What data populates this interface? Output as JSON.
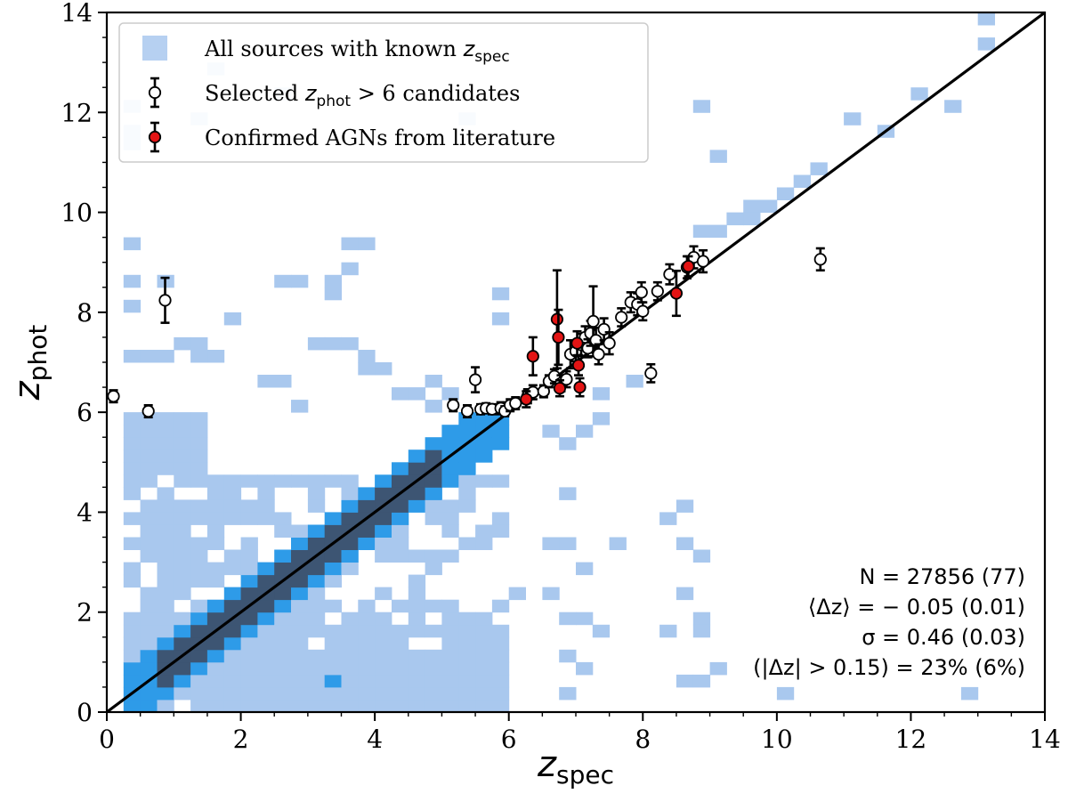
{
  "chart_data": {
    "type": "scatter",
    "xlabel": "z",
    "xlabel_sub": "spec",
    "ylabel": "z",
    "ylabel_sub": "phot",
    "xlim": [
      0,
      14
    ],
    "ylim": [
      0,
      14
    ],
    "xticks": [
      0,
      2,
      4,
      6,
      8,
      10,
      12,
      14
    ],
    "yticks": [
      0,
      2,
      4,
      6,
      8,
      10,
      12,
      14
    ],
    "grid": false,
    "legend_position": "top-left",
    "one_to_one_line": true,
    "colors": {
      "hist_low": "#a9c8ee",
      "hist_mid": "#2e9be8",
      "hist_high": "#3d5573",
      "candidate_fill": "#ffffff",
      "agn_fill": "#e31414",
      "line": "#000000"
    },
    "legend": [
      {
        "kind": "hist",
        "prefix": "All sources with known ",
        "var": "z",
        "sub": "spec",
        "suffix": ""
      },
      {
        "kind": "candidate",
        "prefix": "Selected ",
        "var": "z",
        "sub": "phot",
        "suffix": " > 6 candidates"
      },
      {
        "kind": "agn",
        "prefix": "Confirmed AGNs from literature",
        "var": "",
        "sub": "",
        "suffix": ""
      }
    ],
    "stats": [
      "N = 27856 (77)",
      "⟨Δz⟩ = − 0.05 (0.01)",
      "σ = 0.46 (0.03)",
      "(|Δz| > 0.15) = 23% (6%)"
    ],
    "series": [
      {
        "name": "Selected z_phot > 6 candidates",
        "marker": "open-circle",
        "points": [
          [
            0.1,
            6.32,
            0.12,
            0.12
          ],
          [
            0.62,
            6.02,
            0.12,
            0.12
          ],
          [
            0.87,
            8.24,
            0.45,
            0.45
          ],
          [
            5.17,
            6.14,
            0.12,
            0.12
          ],
          [
            5.38,
            6.02,
            0.12,
            0.12
          ],
          [
            5.5,
            6.65,
            0.25,
            0.25
          ],
          [
            5.58,
            6.06,
            0.1,
            0.1
          ],
          [
            5.66,
            6.08,
            0.1,
            0.1
          ],
          [
            5.75,
            6.06,
            0.1,
            0.1
          ],
          [
            5.88,
            6.08,
            0.12,
            0.12
          ],
          [
            5.94,
            6.02,
            0.1,
            0.1
          ],
          [
            6.02,
            6.14,
            0.12,
            0.12
          ],
          [
            6.1,
            6.18,
            0.12,
            0.12
          ],
          [
            6.28,
            6.32,
            0.14,
            0.14
          ],
          [
            6.36,
            6.4,
            0.14,
            0.14
          ],
          [
            6.52,
            6.42,
            0.12,
            0.12
          ],
          [
            6.6,
            6.62,
            0.12,
            0.12
          ],
          [
            6.68,
            6.72,
            0.14,
            0.14
          ],
          [
            6.78,
            6.58,
            0.16,
            0.16
          ],
          [
            6.86,
            6.66,
            0.16,
            0.16
          ],
          [
            6.92,
            7.16,
            0.28,
            0.28
          ],
          [
            7.0,
            7.22,
            0.2,
            0.2
          ],
          [
            7.08,
            7.35,
            0.22,
            0.22
          ],
          [
            7.14,
            7.5,
            0.22,
            0.22
          ],
          [
            7.18,
            7.28,
            0.18,
            0.18
          ],
          [
            7.22,
            7.58,
            0.25,
            0.25
          ],
          [
            7.26,
            7.82,
            0.7,
            0.7
          ],
          [
            7.3,
            7.44,
            0.25,
            0.25
          ],
          [
            7.34,
            7.16,
            0.2,
            0.2
          ],
          [
            7.42,
            7.66,
            0.22,
            0.22
          ],
          [
            7.5,
            7.38,
            0.22,
            0.22
          ],
          [
            7.68,
            7.9,
            0.18,
            0.18
          ],
          [
            7.82,
            8.2,
            0.2,
            0.2
          ],
          [
            7.92,
            8.16,
            0.22,
            0.22
          ],
          [
            7.98,
            8.4,
            0.2,
            0.2
          ],
          [
            8.0,
            8.02,
            0.18,
            0.18
          ],
          [
            8.12,
            6.78,
            0.18,
            0.18
          ],
          [
            8.22,
            8.42,
            0.18,
            0.18
          ],
          [
            8.4,
            8.76,
            0.2,
            0.2
          ],
          [
            8.66,
            8.9,
            0.22,
            0.22
          ],
          [
            8.76,
            9.1,
            0.22,
            0.22
          ],
          [
            8.9,
            9.02,
            0.22,
            0.22
          ],
          [
            10.65,
            9.06,
            0.22,
            0.22
          ]
        ]
      },
      {
        "name": "Confirmed AGNs from literature",
        "marker": "filled-circle",
        "points": [
          [
            6.26,
            6.26,
            0.16,
            0.16
          ],
          [
            6.36,
            7.12,
            0.38,
            0.38
          ],
          [
            6.72,
            7.86,
            0.98,
            0.98
          ],
          [
            6.74,
            7.5,
            0.55,
            0.55
          ],
          [
            6.76,
            6.48,
            0.16,
            0.16
          ],
          [
            7.02,
            7.38,
            0.24,
            0.24
          ],
          [
            7.04,
            6.94,
            0.2,
            0.2
          ],
          [
            7.06,
            6.5,
            0.18,
            0.18
          ],
          [
            8.5,
            8.38,
            0.45,
            0.45
          ],
          [
            8.68,
            8.92,
            0.2,
            0.2
          ]
        ]
      }
    ],
    "histogram": {
      "bin_width": 0.25,
      "levels": [
        "low",
        "mid",
        "high"
      ],
      "cells": [
        [
          0.25,
          11.5,
          "low"
        ],
        [
          13.0,
          13.75,
          "low"
        ],
        [
          13.0,
          13.25,
          "low"
        ],
        [
          12.5,
          12.0,
          "low"
        ],
        [
          12.0,
          12.25,
          "low"
        ],
        [
          11.0,
          11.75,
          "low"
        ],
        [
          11.5,
          11.5,
          "low"
        ],
        [
          10.5,
          10.75,
          "low"
        ],
        [
          10.25,
          10.5,
          "low"
        ],
        [
          10.0,
          10.25,
          "low"
        ],
        [
          9.75,
          10.0,
          "low"
        ],
        [
          9.5,
          10.0,
          "low"
        ],
        [
          9.5,
          9.75,
          "low"
        ],
        [
          9.25,
          9.75,
          "low"
        ],
        [
          9.0,
          9.5,
          "low"
        ],
        [
          8.75,
          9.5,
          "low"
        ],
        [
          8.75,
          12.0,
          "low"
        ],
        [
          9.0,
          11.0,
          "low"
        ],
        [
          5.25,
          11.75,
          "low"
        ],
        [
          2.5,
          12.25,
          "low"
        ],
        [
          1.25,
          11.75,
          "low"
        ],
        [
          1.5,
          12.75,
          "low"
        ],
        [
          0.25,
          12.0,
          "low"
        ],
        [
          0.25,
          11.25,
          "low"
        ],
        [
          0.25,
          9.25,
          "low"
        ],
        [
          0.25,
          8.5,
          "low"
        ],
        [
          0.25,
          8.0,
          "low"
        ],
        [
          0.75,
          8.5,
          "low"
        ],
        [
          3.25,
          8.25,
          "low"
        ],
        [
          3.5,
          9.25,
          "low"
        ],
        [
          3.75,
          9.25,
          "low"
        ],
        [
          3.5,
          8.75,
          "low"
        ],
        [
          2.75,
          8.5,
          "low"
        ],
        [
          3.25,
          8.5,
          "low"
        ],
        [
          2.5,
          8.5,
          "low"
        ],
        [
          1.75,
          7.75,
          "low"
        ],
        [
          1.0,
          7.25,
          "low"
        ],
        [
          1.25,
          7.25,
          "low"
        ],
        [
          1.5,
          7.0,
          "low"
        ],
        [
          0.25,
          7.0,
          "low"
        ],
        [
          0.5,
          7.0,
          "low"
        ],
        [
          0.75,
          7.0,
          "low"
        ],
        [
          1.25,
          7.0,
          "low"
        ],
        [
          2.25,
          6.5,
          "low"
        ],
        [
          2.5,
          6.5,
          "low"
        ],
        [
          2.75,
          6.0,
          "low"
        ],
        [
          3.0,
          7.25,
          "low"
        ],
        [
          3.25,
          7.25,
          "low"
        ],
        [
          3.5,
          7.25,
          "low"
        ],
        [
          3.75,
          7.0,
          "low"
        ],
        [
          3.75,
          6.75,
          "low"
        ],
        [
          4.0,
          6.75,
          "low"
        ],
        [
          4.25,
          6.25,
          "low"
        ],
        [
          4.5,
          6.25,
          "low"
        ],
        [
          4.75,
          6.5,
          "low"
        ],
        [
          4.75,
          6.0,
          "low"
        ],
        [
          5.0,
          6.25,
          "low"
        ],
        [
          5.75,
          8.25,
          "low"
        ],
        [
          5.75,
          7.75,
          "low"
        ],
        [
          6.5,
          5.5,
          "low"
        ],
        [
          6.75,
          5.25,
          "low"
        ],
        [
          6.75,
          4.25,
          "low"
        ],
        [
          7.0,
          5.5,
          "low"
        ],
        [
          7.25,
          5.75,
          "low"
        ],
        [
          7.25,
          6.25,
          "low"
        ],
        [
          7.75,
          6.5,
          "low"
        ],
        [
          8.25,
          3.75,
          "low"
        ],
        [
          8.5,
          3.25,
          "low"
        ],
        [
          8.5,
          4.0,
          "low"
        ],
        [
          8.75,
          3.0,
          "low"
        ],
        [
          8.5,
          2.25,
          "low"
        ],
        [
          8.75,
          1.75,
          "low"
        ],
        [
          8.75,
          1.5,
          "low"
        ],
        [
          8.5,
          0.5,
          "low"
        ],
        [
          8.75,
          0.5,
          "low"
        ],
        [
          8.25,
          1.5,
          "low"
        ],
        [
          7.5,
          3.25,
          "low"
        ],
        [
          7.0,
          2.75,
          "low"
        ],
        [
          6.75,
          3.25,
          "low"
        ],
        [
          6.5,
          3.25,
          "low"
        ],
        [
          6.5,
          2.25,
          "low"
        ],
        [
          6.75,
          1.75,
          "low"
        ],
        [
          6.75,
          1.0,
          "low"
        ],
        [
          6.0,
          2.25,
          "low"
        ],
        [
          7.0,
          1.75,
          "low"
        ],
        [
          7.25,
          1.5,
          "low"
        ],
        [
          9.0,
          0.75,
          "low"
        ],
        [
          7.0,
          0.75,
          "low"
        ],
        [
          12.75,
          0.25,
          "low"
        ],
        [
          10.0,
          0.25,
          "low"
        ],
        [
          6.75,
          0.25,
          "low"
        ]
      ]
    }
  }
}
